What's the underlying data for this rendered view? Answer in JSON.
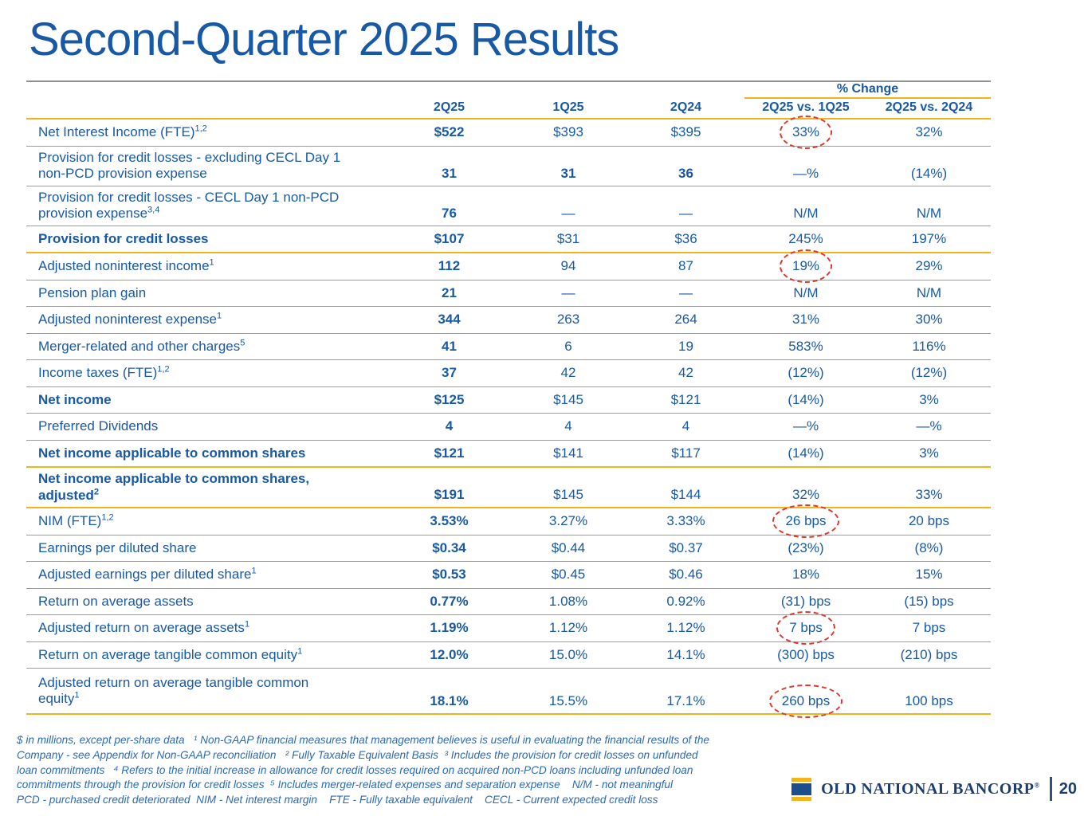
{
  "page": {
    "title": "Second-Quarter 2025 Results",
    "page_number": "20"
  },
  "colors": {
    "text_blue": "#1859A6",
    "brand_navy": "#1C3E6E",
    "brand_gold": "#F2B31B",
    "highlight_red": "#DB3A2E",
    "line_gray": "#9C9C9C"
  },
  "table": {
    "pct_change_header": "% Change",
    "columns": [
      "2Q25",
      "1Q25",
      "2Q24",
      "2Q25 vs. 1Q25",
      "2Q25 vs. 2Q24"
    ],
    "rows": [
      {
        "lines": [
          "Net Interest Income (FTE)"
        ],
        "sup": "1,2",
        "values": [
          "$522",
          "$393",
          "$395",
          "33%",
          "32%"
        ],
        "circled": 3
      },
      {
        "lines": [
          "Provision for credit losses - excluding CECL Day 1",
          "non-PCD provision expense"
        ],
        "values": [
          "31",
          "31",
          "36",
          "—%",
          "(14%)"
        ],
        "boldVals": [
          1,
          2
        ]
      },
      {
        "lines": [
          "Provision for credit losses - CECL Day 1 non-PCD",
          "provision expense"
        ],
        "sup": "3,4",
        "values": [
          "76",
          "—",
          "—",
          "N/M",
          "N/M"
        ]
      },
      {
        "lines": [
          "Provision for credit losses"
        ],
        "bold": true,
        "divider": "gold",
        "values": [
          "$107",
          "$31",
          "$36",
          "245%",
          "197%"
        ]
      },
      {
        "lines": [
          "Adjusted noninterest income"
        ],
        "sup": "1",
        "values": [
          "112",
          "94",
          "87",
          "19%",
          "29%"
        ],
        "circled": 3
      },
      {
        "lines": [
          "Pension plan gain"
        ],
        "values": [
          "21",
          "—",
          "—",
          "N/M",
          "N/M"
        ]
      },
      {
        "lines": [
          "Adjusted noninterest expense"
        ],
        "sup": "1",
        "values": [
          "344",
          "263",
          "264",
          "31%",
          "30%"
        ]
      },
      {
        "lines": [
          "Merger-related and other charges"
        ],
        "sup": "5",
        "values": [
          "41",
          "6",
          "19",
          "583%",
          "116%"
        ]
      },
      {
        "lines": [
          "Income taxes (FTE)"
        ],
        "sup": "1,2",
        "values": [
          "37",
          "42",
          "42",
          "(12%)",
          "(12%)"
        ]
      },
      {
        "lines": [
          "Net income"
        ],
        "bold": true,
        "values": [
          "$125",
          "$145",
          "$121",
          "(14%)",
          "3%"
        ]
      },
      {
        "lines": [
          "Preferred Dividends"
        ],
        "values": [
          "4",
          "4",
          "4",
          "—%",
          "—%"
        ]
      },
      {
        "lines": [
          "Net income applicable to common shares"
        ],
        "bold": true,
        "divider": "gold",
        "values": [
          "$121",
          "$141",
          "$117",
          "(14%)",
          "3%"
        ]
      },
      {
        "lines": [
          "Net income applicable to common shares,",
          "adjusted"
        ],
        "sup": "2",
        "bold": true,
        "divider": "gold",
        "values": [
          "$191",
          "$145",
          "$144",
          "32%",
          "33%"
        ]
      },
      {
        "lines": [
          "NIM (FTE)"
        ],
        "sup": "1,2",
        "values": [
          "3.53%",
          "3.27%",
          "3.33%",
          "26 bps",
          "20 bps"
        ],
        "circled": 3
      },
      {
        "lines": [
          "Earnings per diluted share"
        ],
        "values": [
          "$0.34",
          "$0.44",
          "$0.37",
          "(23%)",
          "(8%)"
        ]
      },
      {
        "lines": [
          "Adjusted earnings per diluted share"
        ],
        "sup": "1",
        "values": [
          "$0.53",
          "$0.45",
          "$0.46",
          "18%",
          "15%"
        ]
      },
      {
        "lines": [
          "Return on average assets"
        ],
        "values": [
          "0.77%",
          "1.08%",
          "0.92%",
          "(31) bps",
          "(15) bps"
        ]
      },
      {
        "lines": [
          "Adjusted return on average assets"
        ],
        "sup": "1",
        "values": [
          "1.19%",
          "1.12%",
          "1.12%",
          "7 bps",
          "7 bps"
        ],
        "circled": 3
      },
      {
        "lines": [
          "Return on average tangible common equity"
        ],
        "sup": "1",
        "values": [
          "12.0%",
          "15.0%",
          "14.1%",
          "(300) bps",
          "(210) bps"
        ]
      },
      {
        "lines": [
          "Adjusted return on average tangible common",
          "equity"
        ],
        "sup": "1",
        "divider": "gold",
        "values": [
          "18.1%",
          "15.5%",
          "17.1%",
          "260 bps",
          "100 bps"
        ],
        "circled": 3
      }
    ]
  },
  "footnotes": {
    "lines": [
      "$ in millions, except per-share data   ¹ Non-GAAP financial measures that management believes is useful in evaluating the financial results of the",
      "Company - see Appendix for Non-GAAP reconciliation   ² Fully Taxable Equivalent Basis  ³ Includes the provision for credit losses on unfunded",
      "loan commitments   ⁴ Refers to the initial increase in allowance for credit losses required on acquired non-PCD loans including unfunded loan",
      "commitments through the provision for credit losses  ⁵ Includes merger-related expenses and separation expense    N/M - not meaningful",
      "PCD - purchased credit deteriorated  NIM - Net interest margin    FTE - Fully taxable equivalent    CECL - Current expected credit loss"
    ]
  },
  "logo": {
    "name": "OLD NATIONAL BANCORP",
    "registered": "®"
  }
}
